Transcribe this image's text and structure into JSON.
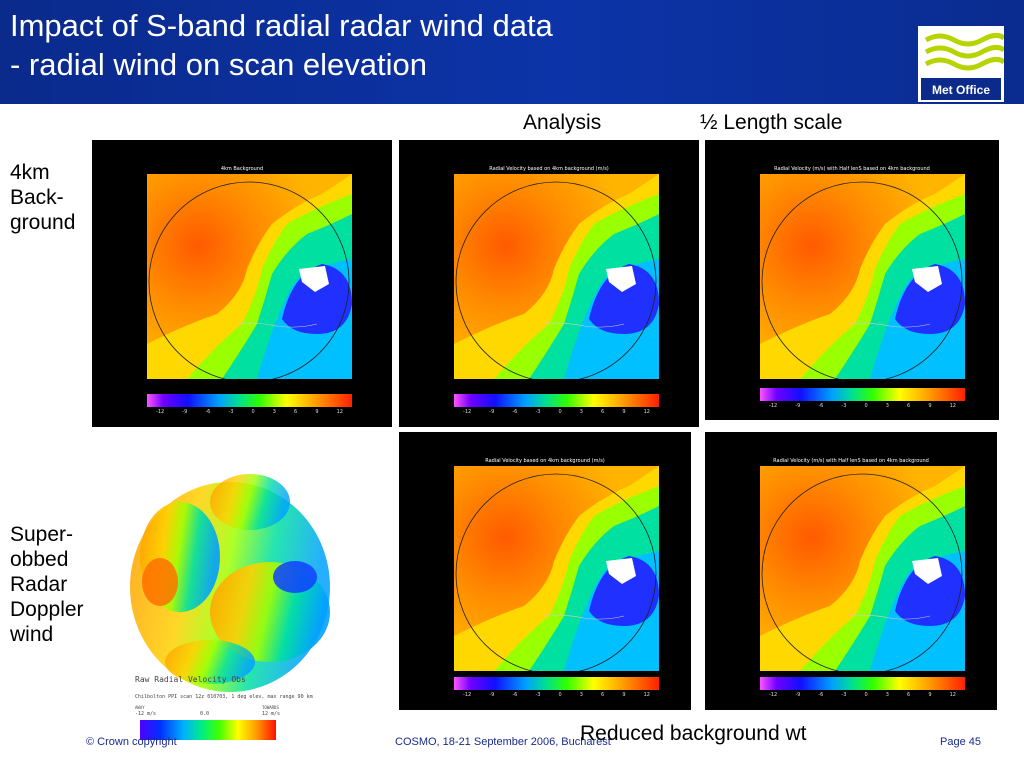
{
  "header": {
    "title_line1": "Impact of S-band radial radar wind data",
    "title_line2": "- radial wind on scan elevation",
    "logo_text": "Met Office",
    "logo_icon": "wave-logo-icon"
  },
  "column_labels": {
    "analysis": "Analysis",
    "half_length": "½ Length scale"
  },
  "row_labels": {
    "background": [
      "4km",
      "Back-",
      "ground"
    ],
    "superobbed": [
      "Super-",
      "obbed",
      "Radar",
      "Doppler",
      "wind"
    ]
  },
  "panels": {
    "background": {
      "title": "4km Background"
    },
    "analysis_top": {
      "title": "Radial Velocity based on 4km background (m/s)"
    },
    "halflength_top": {
      "title": "Radial Velocity (m/s) with Half lenS based on 4km background"
    },
    "analysis_bottom": {
      "title": "Radial Velocity based on 4km background (m/s)"
    },
    "halflength_bottom": {
      "title": "Radial Velocity (m/s) with Half lenS based on 4km background"
    }
  },
  "colorbar_ticks": [
    "-12",
    "-9",
    "-6",
    "-3",
    "0",
    "3",
    "6",
    "9",
    "12"
  ],
  "obs": {
    "title": "Raw Radial Velocity Obs",
    "subtitle": "Chilbolton PPI scan 12z 010703, 1 deg elev, max range 90 km",
    "away_label": "AWAY",
    "away_value": "-12 m/s",
    "zero_value": "0.0",
    "towards_label": "TOWARDS",
    "towards_value": "12 m/s"
  },
  "footer": {
    "left": "© Crown copyright",
    "center": "COSMO, 18-21 September 2006, Bucharest",
    "page": "Page 45"
  },
  "caption": "Reduced background wt",
  "colors": {
    "header_blue": "#0c34a8",
    "footer_text": "#1a2a8c"
  }
}
